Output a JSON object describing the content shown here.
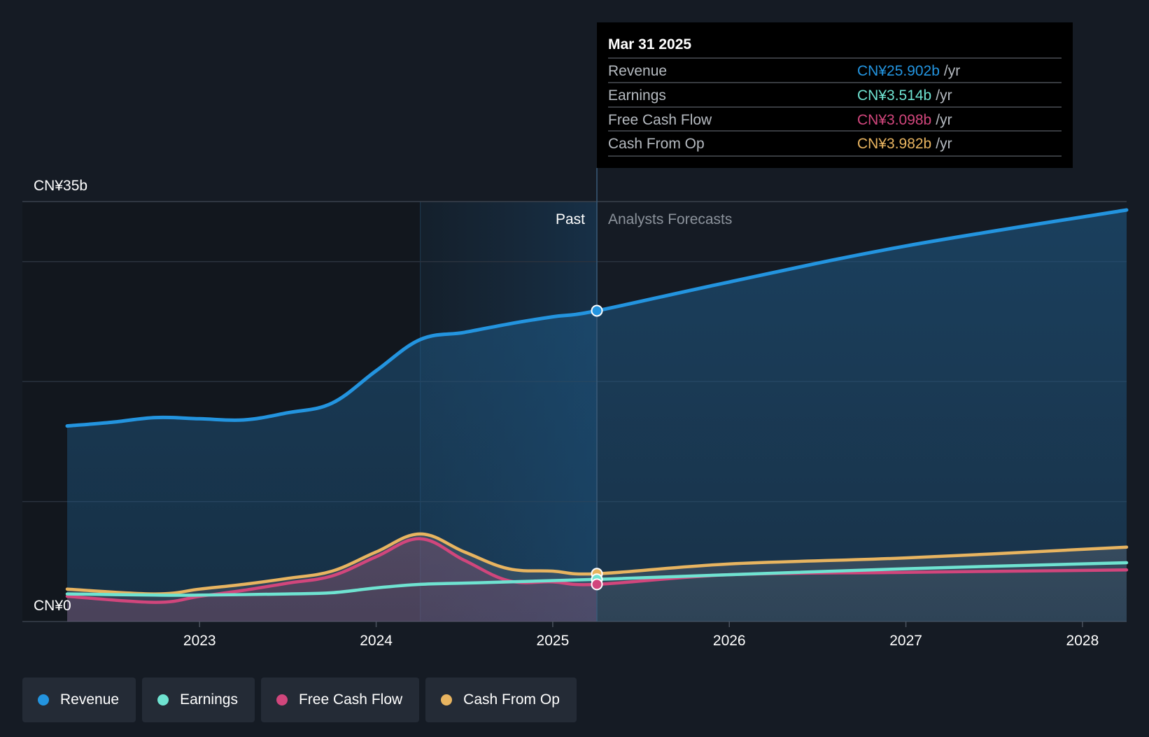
{
  "colors": {
    "background": "#151b24",
    "revenue": "#2394df",
    "earnings": "#6fe3d1",
    "free_cash_flow": "#d1467c",
    "cash_from_op": "#e8b460",
    "grid": "#2a323e",
    "past_text": "#ffffff",
    "forecast_text": "#8c939c"
  },
  "tooltip": {
    "date": "Mar 31 2025",
    "unit_suffix": "/yr",
    "rows": [
      {
        "label": "Revenue",
        "value": "CN¥25.902b",
        "color": "#2394df"
      },
      {
        "label": "Earnings",
        "value": "CN¥3.514b",
        "color": "#6fe3d1"
      },
      {
        "label": "Free Cash Flow",
        "value": "CN¥3.098b",
        "color": "#d1467c"
      },
      {
        "label": "Cash From Op",
        "value": "CN¥3.982b",
        "color": "#e8b460"
      }
    ]
  },
  "chart_data": {
    "type": "area",
    "title": "",
    "xlabel": "",
    "ylabel": "",
    "ylim": [
      0,
      35
    ],
    "x_range": [
      2022.25,
      2028.25
    ],
    "y_axis_labels": {
      "top": "CN¥35b",
      "bottom": "CN¥0"
    },
    "x_ticks": [
      {
        "value": 2023,
        "label": "2023"
      },
      {
        "value": 2024,
        "label": "2024"
      },
      {
        "value": 2025,
        "label": "2025"
      },
      {
        "value": 2026,
        "label": "2026"
      },
      {
        "value": 2027,
        "label": "2027"
      },
      {
        "value": 2028,
        "label": "2028"
      }
    ],
    "past_label": "Past",
    "forecast_label": "Analysts Forecasts",
    "highlight_start": 2024.25,
    "divider_x": 2025.25,
    "series": [
      {
        "name": "Revenue",
        "key": "revenue",
        "color": "#2394df",
        "past": [
          [
            2022.25,
            16.3
          ],
          [
            2022.5,
            16.6
          ],
          [
            2022.75,
            17.0
          ],
          [
            2023.0,
            16.9
          ],
          [
            2023.25,
            16.8
          ],
          [
            2023.5,
            17.4
          ],
          [
            2023.75,
            18.2
          ],
          [
            2024.0,
            20.9
          ],
          [
            2024.25,
            23.5
          ],
          [
            2024.5,
            24.1
          ],
          [
            2024.75,
            24.8
          ],
          [
            2025.0,
            25.4
          ],
          [
            2025.25,
            25.902
          ]
        ],
        "forecast": [
          [
            2025.25,
            25.902
          ],
          [
            2026.0,
            28.3
          ],
          [
            2027.0,
            31.3
          ],
          [
            2028.25,
            34.3
          ]
        ],
        "marker": 25.902
      },
      {
        "name": "Earnings",
        "key": "earnings",
        "color": "#6fe3d1",
        "past": [
          [
            2022.25,
            2.3
          ],
          [
            2022.75,
            2.2
          ],
          [
            2023.0,
            2.2
          ],
          [
            2023.5,
            2.3
          ],
          [
            2023.75,
            2.4
          ],
          [
            2024.0,
            2.8
          ],
          [
            2024.25,
            3.1
          ],
          [
            2024.5,
            3.2
          ],
          [
            2024.75,
            3.3
          ],
          [
            2025.25,
            3.514
          ]
        ],
        "forecast": [
          [
            2025.25,
            3.514
          ],
          [
            2026.0,
            3.9
          ],
          [
            2027.0,
            4.4
          ],
          [
            2028.25,
            4.9
          ]
        ],
        "marker": 3.514
      },
      {
        "name": "Free Cash Flow",
        "key": "fcf",
        "color": "#d1467c",
        "past": [
          [
            2022.25,
            2.1
          ],
          [
            2022.75,
            1.6
          ],
          [
            2023.0,
            2.1
          ],
          [
            2023.25,
            2.6
          ],
          [
            2023.5,
            3.2
          ],
          [
            2023.75,
            3.8
          ],
          [
            2024.0,
            5.4
          ],
          [
            2024.25,
            6.9
          ],
          [
            2024.5,
            5.1
          ],
          [
            2024.75,
            3.4
          ],
          [
            2025.0,
            3.3
          ],
          [
            2025.25,
            3.098
          ]
        ],
        "forecast": [
          [
            2025.25,
            3.098
          ],
          [
            2026.0,
            3.9
          ],
          [
            2027.0,
            4.1
          ],
          [
            2028.25,
            4.3
          ]
        ],
        "marker": 3.098
      },
      {
        "name": "Cash From Op",
        "key": "cfo",
        "color": "#e8b460",
        "past": [
          [
            2022.25,
            2.7
          ],
          [
            2022.75,
            2.3
          ],
          [
            2023.0,
            2.7
          ],
          [
            2023.25,
            3.1
          ],
          [
            2023.5,
            3.6
          ],
          [
            2023.75,
            4.2
          ],
          [
            2024.0,
            5.8
          ],
          [
            2024.25,
            7.3
          ],
          [
            2024.5,
            5.8
          ],
          [
            2024.75,
            4.4
          ],
          [
            2025.0,
            4.2
          ],
          [
            2025.25,
            3.982
          ]
        ],
        "forecast": [
          [
            2025.25,
            3.982
          ],
          [
            2026.0,
            4.8
          ],
          [
            2027.0,
            5.3
          ],
          [
            2028.25,
            6.2
          ]
        ],
        "marker": 3.982
      }
    ]
  },
  "legend": [
    {
      "label": "Revenue",
      "color": "#2394df"
    },
    {
      "label": "Earnings",
      "color": "#6fe3d1"
    },
    {
      "label": "Free Cash Flow",
      "color": "#d1467c"
    },
    {
      "label": "Cash From Op",
      "color": "#e8b460"
    }
  ]
}
